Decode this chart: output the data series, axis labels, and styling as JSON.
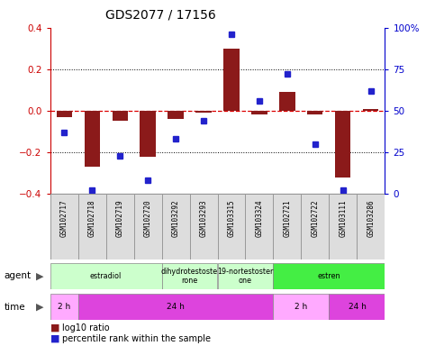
{
  "title": "GDS2077 / 17156",
  "samples": [
    "GSM102717",
    "GSM102718",
    "GSM102719",
    "GSM102720",
    "GSM103292",
    "GSM103293",
    "GSM103315",
    "GSM103324",
    "GSM102721",
    "GSM102722",
    "GSM103111",
    "GSM103286"
  ],
  "log10_ratio": [
    -0.03,
    -0.27,
    -0.05,
    -0.22,
    -0.04,
    -0.01,
    0.3,
    -0.02,
    0.09,
    -0.02,
    -0.32,
    0.01
  ],
  "percentile": [
    37,
    2,
    23,
    8,
    33,
    44,
    96,
    56,
    72,
    30,
    2,
    62
  ],
  "ylim_left": [
    -0.4,
    0.4
  ],
  "ylim_right": [
    0,
    100
  ],
  "yticks_left": [
    -0.4,
    -0.2,
    0.0,
    0.2,
    0.4
  ],
  "yticks_right": [
    0,
    25,
    50,
    75,
    100
  ],
  "bar_color": "#8B1A1A",
  "dot_color": "#2222CC",
  "zero_line_color": "#DD0000",
  "agent_groups": [
    {
      "label": "estradiol",
      "start": 0,
      "end": 4,
      "color": "#CCFFCC"
    },
    {
      "label": "dihydrotestoste\nrone",
      "start": 4,
      "end": 6,
      "color": "#CCFFCC"
    },
    {
      "label": "19-nortestoster\none",
      "start": 6,
      "end": 8,
      "color": "#CCFFCC"
    },
    {
      "label": "estren",
      "start": 8,
      "end": 12,
      "color": "#44EE44"
    }
  ],
  "time_groups": [
    {
      "label": "2 h",
      "start": 0,
      "end": 1,
      "color": "#FFAAFF"
    },
    {
      "label": "24 h",
      "start": 1,
      "end": 8,
      "color": "#DD44DD"
    },
    {
      "label": "2 h",
      "start": 8,
      "end": 10,
      "color": "#FFAAFF"
    },
    {
      "label": "24 h",
      "start": 10,
      "end": 12,
      "color": "#DD44DD"
    }
  ],
  "legend_items": [
    {
      "label": "log10 ratio",
      "color": "#8B1A1A"
    },
    {
      "label": "percentile rank within the sample",
      "color": "#2222CC"
    }
  ]
}
